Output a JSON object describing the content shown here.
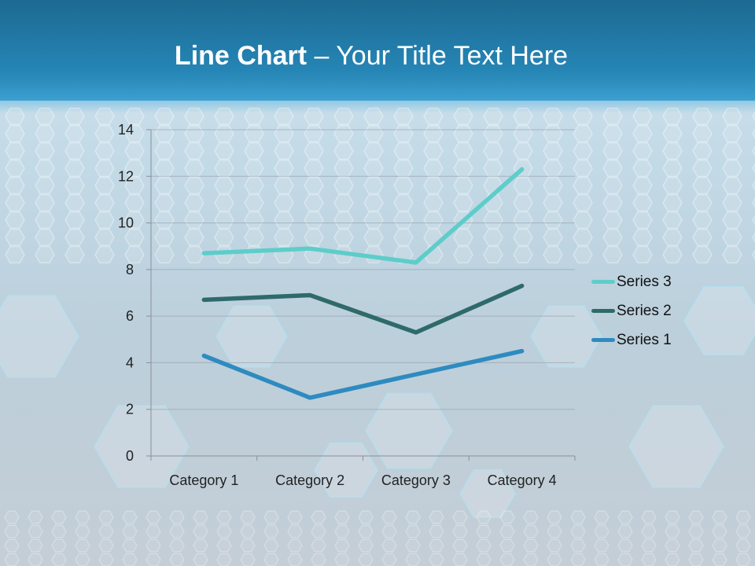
{
  "slide": {
    "title_bold": "Line Chart",
    "title_rest": " – Your Title Text Here",
    "title_color": "#1d6a92"
  },
  "chart_data": {
    "type": "line",
    "title": "",
    "xlabel": "",
    "ylabel": "",
    "categories": [
      "Category 1",
      "Category 2",
      "Category 3",
      "Category 4"
    ],
    "ylim": [
      0,
      14
    ],
    "yticks": [
      0,
      2,
      4,
      6,
      8,
      10,
      12,
      14
    ],
    "grid": true,
    "legend_position": "right",
    "series": [
      {
        "name": "Series 1",
        "values": [
          4.3,
          2.5,
          3.5,
          4.5
        ],
        "color": "#2e8bc0"
      },
      {
        "name": "Series 2",
        "values": [
          6.7,
          6.9,
          5.3,
          7.3
        ],
        "color": "#2f6a6a"
      },
      {
        "name": "Series 3",
        "values": [
          8.7,
          8.9,
          8.3,
          12.3
        ],
        "color": "#5ecdca"
      }
    ]
  }
}
